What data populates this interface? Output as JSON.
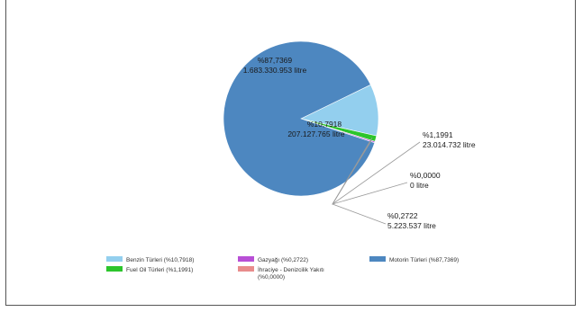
{
  "chart_data": {
    "type": "pie",
    "title": "",
    "slices": [
      {
        "name": "Benzin Türleri (%10,7918)",
        "percent_label": "%10,7918",
        "volume_label": "207.127.765 litre",
        "value": 10.7918,
        "color": "#93cfee"
      },
      {
        "name": "Fuel Oil Türleri (%1,1991)",
        "percent_label": "%1,1991",
        "volume_label": "23.014.732 litre",
        "value": 1.1991,
        "color": "#2cc52c"
      },
      {
        "name": "Gazyağı (%0,2722)",
        "percent_label": "%0,2722",
        "volume_label": "5.223.537 litre",
        "value": 0.2722,
        "color": "#b84fd6"
      },
      {
        "name": "İhraciye - Denizcilik Yakıtı (%0,0000)",
        "percent_label": "%0,0000",
        "volume_label": "0 litre",
        "value": 0.0,
        "color": "#e88c8c"
      },
      {
        "name": "Motorin Türleri (%87,7369)",
        "percent_label": "%87,7369",
        "volume_label": "1.683.330.953 litre",
        "value": 87.7369,
        "color": "#4d87c0"
      }
    ],
    "legend_position": "bottom"
  }
}
